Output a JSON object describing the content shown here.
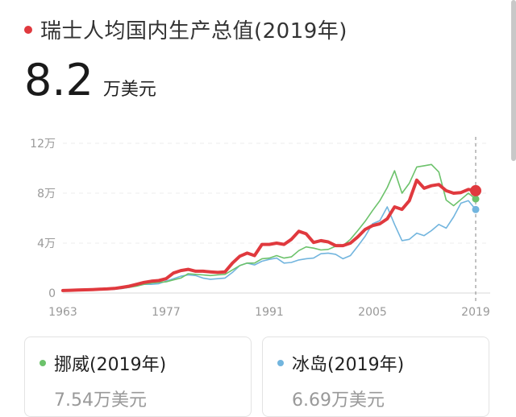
{
  "header": {
    "title": "瑞士人均国内生产总值(2019年)",
    "value": "8.2",
    "unit": "万美元",
    "accent": "#e0393e"
  },
  "cards": [
    {
      "label": "挪威(2019年)",
      "value": "7.54万美元",
      "color": "#6cc26b"
    },
    {
      "label": "冰岛(2019年)",
      "value": "6.69万美元",
      "color": "#72b5de"
    }
  ],
  "chart_data": {
    "type": "line",
    "x": [
      1963,
      1964,
      1965,
      1966,
      1967,
      1968,
      1969,
      1970,
      1971,
      1972,
      1973,
      1974,
      1975,
      1976,
      1977,
      1978,
      1979,
      1980,
      1981,
      1982,
      1983,
      1984,
      1985,
      1986,
      1987,
      1988,
      1989,
      1990,
      1991,
      1992,
      1993,
      1994,
      1995,
      1996,
      1997,
      1998,
      1999,
      2000,
      2001,
      2002,
      2003,
      2004,
      2005,
      2006,
      2007,
      2008,
      2009,
      2010,
      2011,
      2012,
      2013,
      2014,
      2015,
      2016,
      2017,
      2018,
      2019
    ],
    "series": [
      {
        "name": "瑞士",
        "color": "#e0393e",
        "values": [
          0.2,
          0.22,
          0.24,
          0.26,
          0.28,
          0.3,
          0.33,
          0.37,
          0.45,
          0.55,
          0.7,
          0.85,
          0.95,
          1.0,
          1.15,
          1.6,
          1.8,
          1.9,
          1.75,
          1.75,
          1.7,
          1.65,
          1.7,
          2.4,
          2.95,
          3.2,
          3.0,
          3.9,
          3.9,
          4.0,
          3.9,
          4.3,
          4.95,
          4.75,
          4.05,
          4.2,
          4.1,
          3.8,
          3.8,
          4.0,
          4.5,
          5.1,
          5.4,
          5.55,
          5.95,
          6.9,
          6.7,
          7.4,
          9.05,
          8.4,
          8.6,
          8.7,
          8.2,
          8.0,
          8.05,
          8.3,
          8.2
        ]
      },
      {
        "name": "挪威",
        "color": "#6cc26b",
        "values": [
          0.15,
          0.17,
          0.19,
          0.21,
          0.23,
          0.26,
          0.29,
          0.32,
          0.38,
          0.45,
          0.55,
          0.7,
          0.8,
          0.85,
          0.9,
          1.05,
          1.2,
          1.55,
          1.5,
          1.45,
          1.4,
          1.45,
          1.5,
          1.85,
          2.2,
          2.4,
          2.4,
          2.75,
          2.8,
          3.0,
          2.8,
          2.9,
          3.4,
          3.7,
          3.6,
          3.45,
          3.5,
          3.75,
          3.8,
          4.3,
          5.0,
          5.75,
          6.6,
          7.4,
          8.45,
          9.8,
          8.0,
          8.8,
          10.1,
          10.2,
          10.3,
          9.7,
          7.45,
          7.0,
          7.5,
          8.0,
          7.54
        ]
      },
      {
        "name": "冰岛",
        "color": "#72b5de",
        "values": [
          0.18,
          0.19,
          0.21,
          0.23,
          0.25,
          0.25,
          0.27,
          0.3,
          0.36,
          0.45,
          0.6,
          0.7,
          0.7,
          0.75,
          0.95,
          1.15,
          1.35,
          1.45,
          1.4,
          1.2,
          1.1,
          1.15,
          1.2,
          1.65,
          2.2,
          2.4,
          2.25,
          2.55,
          2.7,
          2.8,
          2.4,
          2.45,
          2.65,
          2.75,
          2.8,
          3.15,
          3.2,
          3.1,
          2.75,
          3.0,
          3.75,
          4.55,
          5.55,
          5.8,
          6.9,
          5.5,
          4.2,
          4.3,
          4.8,
          4.6,
          5.0,
          5.5,
          5.2,
          6.1,
          7.2,
          7.4,
          6.69
        ]
      }
    ],
    "ylim": [
      0,
      12
    ],
    "yticks": [
      0,
      4,
      8,
      12
    ],
    "ytick_labels": [
      "0",
      "4万",
      "8万",
      "12万"
    ],
    "xtick_values": [
      1963,
      1977,
      1991,
      2005,
      2019
    ],
    "xtick_labels": [
      "1963",
      "1977",
      "1991",
      "2005",
      "2019"
    ],
    "grid": true,
    "highlight_x": 2019
  }
}
